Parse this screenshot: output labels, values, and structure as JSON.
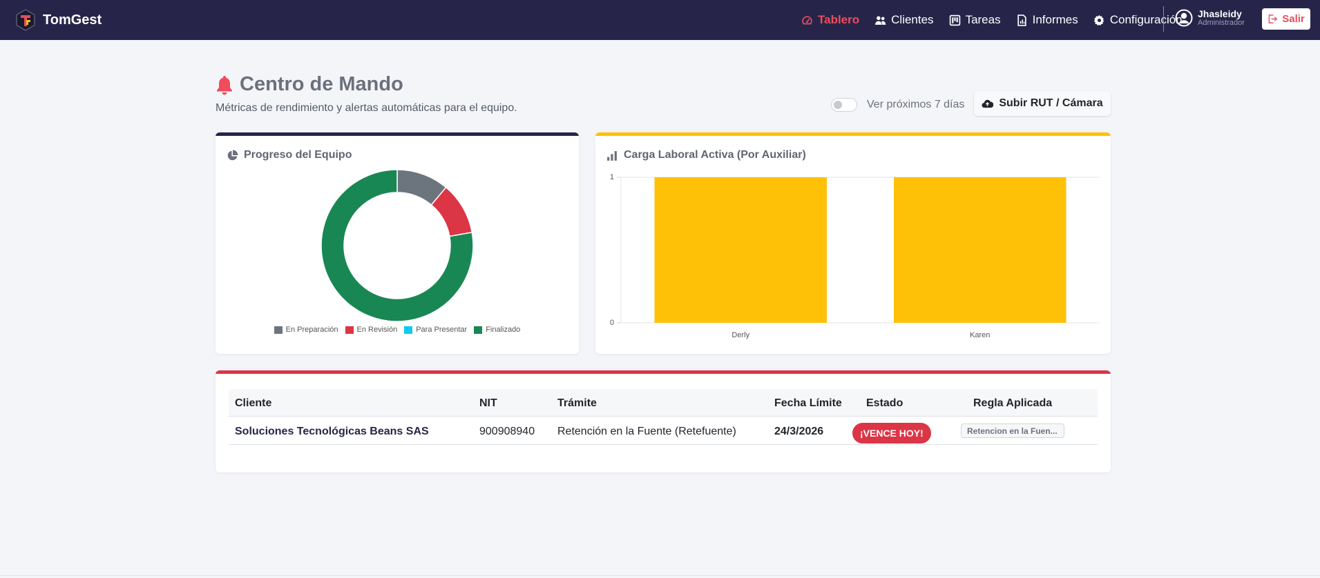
{
  "app": {
    "name": "TomGest",
    "accent": "#262549"
  },
  "nav": {
    "items": [
      {
        "label": "Tablero",
        "icon": "gauge-icon",
        "active": true
      },
      {
        "label": "Clientes",
        "icon": "users-icon"
      },
      {
        "label": "Tareas",
        "icon": "kanban-icon"
      },
      {
        "label": "Informes",
        "icon": "file-report-icon"
      },
      {
        "label": "Configuración",
        "icon": "gear-icon"
      }
    ],
    "user": {
      "name": "Jhasleidy",
      "role": "Administrador"
    },
    "logout_label": "Salir"
  },
  "header": {
    "title": "Centro de Mando",
    "subtitle": "Métricas de rendimiento y alertas automáticas para el equipo.",
    "toggle_label": "Ver próximos 7 días",
    "toggle_on": false,
    "upload_label": "Subir RUT / Cámara"
  },
  "team_card": {
    "title": "Progreso del Equipo",
    "accent": "#262549"
  },
  "workload_card": {
    "title": "Carga Laboral Activa (Por Auxiliar)",
    "accent": "#ffc107"
  },
  "alerts_card": {
    "accent": "#dc3545"
  },
  "chart_data": [
    {
      "type": "pie",
      "variant": "doughnut",
      "labels": [
        "En Preparación",
        "En Revisión",
        "Para Presentar",
        "Finalizado"
      ],
      "values": [
        1,
        1,
        0,
        7
      ],
      "colors": [
        "#6c757d",
        "#dc3545",
        "#0dcaf0",
        "#198754"
      ],
      "legend": "bottom"
    },
    {
      "type": "bar",
      "categories": [
        "Derly",
        "Karen"
      ],
      "values": [
        1,
        1
      ],
      "ylim": [
        0,
        1
      ],
      "yticks": [
        "0",
        "1"
      ],
      "color": "#ffc107",
      "grid": true
    }
  ],
  "table": {
    "headers": [
      "Cliente",
      "NIT",
      "Trámite",
      "Fecha Límite",
      "Estado",
      "Regla Aplicada"
    ],
    "rows": [
      {
        "cliente": "Soluciones Tecnológicas Beans SAS",
        "nit": "900908940",
        "tramite": "Retención en la Fuente (Retefuente)",
        "fecha": "24/3/2026",
        "estado": "¡VENCE HOY!",
        "regla": "Retencion en la Fuen..."
      }
    ]
  }
}
